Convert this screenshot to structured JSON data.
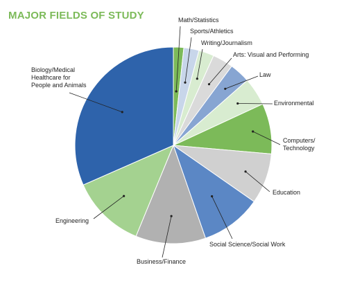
{
  "title": "MAJOR FIELDS OF STUDY",
  "colors": {
    "title": "#7cba59",
    "leader": "#222222",
    "slice_border": "#ffffff"
  },
  "chart_data": {
    "type": "pie",
    "title": "MAJOR FIELDS OF STUDY",
    "start": "12 o'clock",
    "direction": "clockwise",
    "unit": "percent",
    "legend": "none (slice labels with leader lines)",
    "slices": [
      {
        "label": "Math/Statistics",
        "value": 1.7,
        "color": "#7cba59"
      },
      {
        "label": "Sports/Athletics",
        "value": 2.5,
        "color": "#c8d6ea"
      },
      {
        "label": "Writing/Journalism",
        "value": 2.5,
        "color": "#d8ecd0"
      },
      {
        "label": "Arts: Visual and Performing",
        "value": 3.4,
        "color": "#dadada"
      },
      {
        "label": "Law",
        "value": 3.4,
        "color": "#87a5d2"
      },
      {
        "label": "Environmental",
        "value": 4.6,
        "color": "#d8ecd0"
      },
      {
        "label": "Computers/Technology",
        "value": 8.3,
        "color": "#7cba59"
      },
      {
        "label": "Education",
        "value": 8.3,
        "color": "#d0d0d0"
      },
      {
        "label": "Social Science/Social Work",
        "value": 10.0,
        "color": "#5b87c5"
      },
      {
        "label": "Business/Finance",
        "value": 11.5,
        "color": "#b1b1b1"
      },
      {
        "label": "Engineering",
        "value": 12.2,
        "color": "#a4d290"
      },
      {
        "label": "Biology/Medical Healthcare for People and Animals",
        "value": 31.6,
        "color": "#2e63ab"
      }
    ]
  },
  "label_lines": {
    "Math/Statistics": [
      "Math/Statistics"
    ],
    "Sports/Athletics": [
      "Sports/Athletics"
    ],
    "Writing/Journalism": [
      "Writing/Journalism"
    ],
    "Arts: Visual and Performing": [
      "Arts: Visual and Performing"
    ],
    "Law": [
      "Law"
    ],
    "Environmental": [
      "Environmental"
    ],
    "Computers/Technology": [
      "Computers/",
      "Technology"
    ],
    "Education": [
      "Education"
    ],
    "Social Science/Social Work": [
      "Social Science/Social Work"
    ],
    "Business/Finance": [
      "Business/Finance"
    ],
    "Engineering": [
      "Engineering"
    ],
    "Biology/Medical Healthcare for People and Animals": [
      "Biology/Medical",
      "Healthcare for",
      "People and Animals"
    ]
  }
}
